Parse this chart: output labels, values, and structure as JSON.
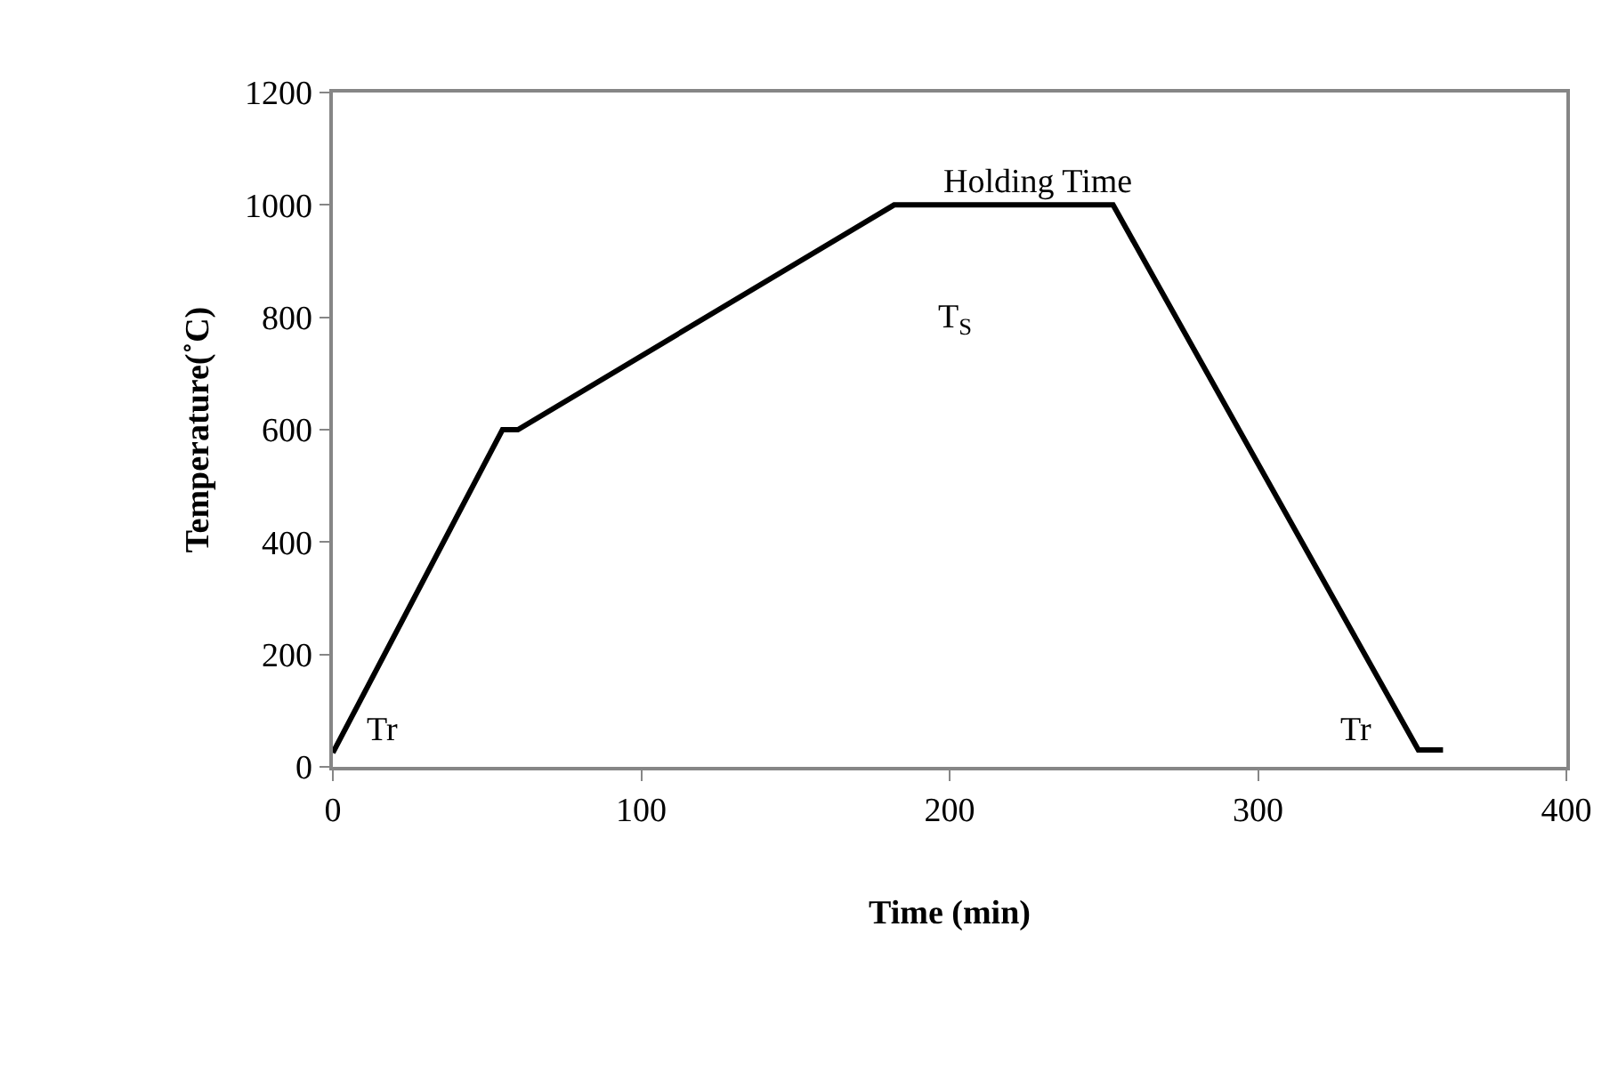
{
  "chart_data": {
    "type": "line",
    "xlabel": "Time (min)",
    "ylabel": "Temperature(˚C)",
    "x": [
      0,
      55,
      60,
      182,
      253,
      352,
      360
    ],
    "series": [
      {
        "color": "#000000",
        "values": [
          25,
          600,
          600,
          1000,
          1000,
          30,
          30
        ]
      }
    ],
    "xlim": [
      0,
      400
    ],
    "xticks": [
      0,
      100,
      200,
      300,
      400
    ],
    "ylim": [
      0,
      1200
    ],
    "yticks": [
      0,
      200,
      400,
      600,
      800,
      1000,
      1200
    ],
    "marker": "none",
    "line_style": "solid",
    "annotations": [
      "Tr",
      "Holding Time",
      "T$_{S}$",
      "Tr"
    ]
  }
}
